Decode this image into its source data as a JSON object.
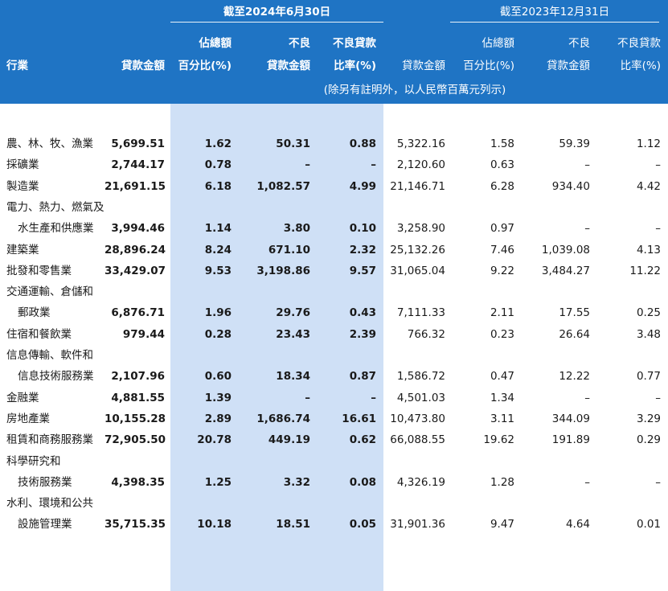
{
  "header": {
    "group_2024": "截至2024年6月30日",
    "group_2023": "截至2023年12月31日",
    "industry": "行業",
    "c1": "貸款金額",
    "c2_top": "佔總額",
    "c2_bot": "百分比(%)",
    "c3_top": "不良",
    "c3_bot": "貸款金額",
    "c4_top": "不良貸款",
    "c4_bot": "比率(%)",
    "c5": "貸款金額",
    "c6_top": "佔總額",
    "c6_bot": "百分比(%)",
    "c7_top": "不良",
    "c7_bot": "貸款金額",
    "c8_top": "不良貸款",
    "c8_bot": "比率(%)",
    "unit_note": "(除另有註明外，以人民幣百萬元列示)"
  },
  "rows": [
    {
      "industry": "農、林、牧、漁業",
      "v": [
        "5,699.51",
        "1.62",
        "50.31",
        "0.88",
        "5,322.16",
        "1.58",
        "59.39",
        "1.12"
      ]
    },
    {
      "industry": "採礦業",
      "v": [
        "2,744.17",
        "0.78",
        "–",
        "–",
        "2,120.60",
        "0.63",
        "–",
        "–"
      ]
    },
    {
      "industry": "製造業",
      "v": [
        "21,691.15",
        "6.18",
        "1,082.57",
        "4.99",
        "21,146.71",
        "6.28",
        "934.40",
        "4.42"
      ]
    },
    {
      "industry": "電力、熱力、燃氣及",
      "v": [
        "",
        "",
        "",
        "",
        "",
        "",
        "",
        ""
      ]
    },
    {
      "industry": "水生產和供應業",
      "indent": true,
      "v": [
        "3,994.46",
        "1.14",
        "3.80",
        "0.10",
        "3,258.90",
        "0.97",
        "–",
        "–"
      ]
    },
    {
      "industry": "建築業",
      "v": [
        "28,896.24",
        "8.24",
        "671.10",
        "2.32",
        "25,132.26",
        "7.46",
        "1,039.08",
        "4.13"
      ]
    },
    {
      "industry": "批發和零售業",
      "v": [
        "33,429.07",
        "9.53",
        "3,198.86",
        "9.57",
        "31,065.04",
        "9.22",
        "3,484.27",
        "11.22"
      ]
    },
    {
      "industry": "交通運輸、倉儲和",
      "v": [
        "",
        "",
        "",
        "",
        "",
        "",
        "",
        ""
      ]
    },
    {
      "industry": "郵政業",
      "indent": true,
      "v": [
        "6,876.71",
        "1.96",
        "29.76",
        "0.43",
        "7,111.33",
        "2.11",
        "17.55",
        "0.25"
      ]
    },
    {
      "industry": "住宿和餐飲業",
      "v": [
        "979.44",
        "0.28",
        "23.43",
        "2.39",
        "766.32",
        "0.23",
        "26.64",
        "3.48"
      ]
    },
    {
      "industry": "信息傳輸、軟件和",
      "v": [
        "",
        "",
        "",
        "",
        "",
        "",
        "",
        ""
      ]
    },
    {
      "industry": "信息技術服務業",
      "indent": true,
      "v": [
        "2,107.96",
        "0.60",
        "18.34",
        "0.87",
        "1,586.72",
        "0.47",
        "12.22",
        "0.77"
      ]
    },
    {
      "industry": "金融業",
      "v": [
        "4,881.55",
        "1.39",
        "–",
        "–",
        "4,501.03",
        "1.34",
        "–",
        "–"
      ]
    },
    {
      "industry": "房地產業",
      "v": [
        "10,155.28",
        "2.89",
        "1,686.74",
        "16.61",
        "10,473.80",
        "3.11",
        "344.09",
        "3.29"
      ]
    },
    {
      "industry": "租賃和商務服務業",
      "v": [
        "72,905.50",
        "20.78",
        "449.19",
        "0.62",
        "66,088.55",
        "19.62",
        "191.89",
        "0.29"
      ]
    },
    {
      "industry": "科學研究和",
      "v": [
        "",
        "",
        "",
        "",
        "",
        "",
        "",
        ""
      ]
    },
    {
      "industry": "技術服務業",
      "indent": true,
      "v": [
        "4,398.35",
        "1.25",
        "3.32",
        "0.08",
        "4,326.19",
        "1.28",
        "–",
        "–"
      ]
    },
    {
      "industry": "水利、環境和公共",
      "v": [
        "",
        "",
        "",
        "",
        "",
        "",
        "",
        ""
      ]
    },
    {
      "industry": "設施管理業",
      "indent": true,
      "v": [
        "35,715.35",
        "10.18",
        "18.51",
        "0.05",
        "31,901.36",
        "9.47",
        "4.64",
        "0.01"
      ]
    }
  ]
}
